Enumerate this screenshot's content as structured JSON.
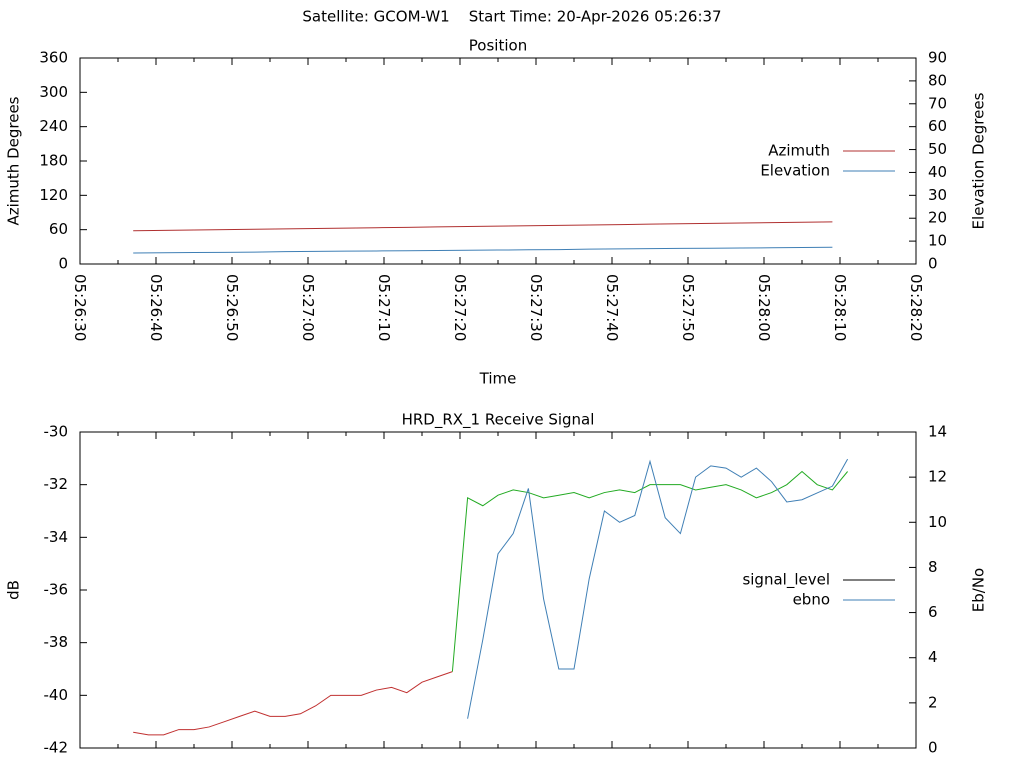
{
  "title": "Satellite: GCOM-W1    Start Time: 20-Apr-2026 05:26:37",
  "chart_data": [
    {
      "type": "line",
      "title": "Position",
      "xlabel": "Time",
      "ylabel": "Azimuth Degrees",
      "y2label": "Elevation Degrees",
      "x": [
        "05:26:37",
        "05:26:41",
        "05:26:45",
        "05:26:49",
        "05:26:53",
        "05:26:57",
        "05:27:01",
        "05:27:05",
        "05:27:09",
        "05:27:13",
        "05:27:17",
        "05:27:21",
        "05:27:25",
        "05:27:29",
        "05:27:33",
        "05:27:37",
        "05:27:41",
        "05:27:45",
        "05:27:49",
        "05:27:53",
        "05:27:57",
        "05:28:01",
        "05:28:05",
        "05:28:09"
      ],
      "xlim": [
        "05:26:30",
        "05:28:20"
      ],
      "xticks": [
        "05:26:30",
        "05:26:40",
        "05:26:50",
        "05:27:00",
        "05:27:10",
        "05:27:20",
        "05:27:30",
        "05:27:40",
        "05:27:50",
        "05:28:00",
        "05:28:10",
        "05:28:20"
      ],
      "ylim": [
        0,
        360
      ],
      "yticks": [
        0,
        60,
        120,
        180,
        240,
        300,
        360
      ],
      "y2lim": [
        0,
        90
      ],
      "y2ticks": [
        0,
        10,
        20,
        30,
        40,
        50,
        60,
        70,
        80,
        90
      ],
      "legend": "center right",
      "series": [
        {
          "name": "Azimuth",
          "color": "#b03030",
          "values": [
            58,
            58.7,
            59.4,
            60,
            60.7,
            61.4,
            62.1,
            62.8,
            63.4,
            64.1,
            64.8,
            65.5,
            66.2,
            66.9,
            67.5,
            68.2,
            68.9,
            69.6,
            70.3,
            71,
            71.6,
            72.3,
            73,
            73.7
          ]
        },
        {
          "name": "Elevation",
          "color": "#3f7fb5",
          "axis": "y2",
          "values": [
            4.8,
            4.9,
            5,
            5.1,
            5.2,
            5.4,
            5.5,
            5.6,
            5.7,
            5.8,
            5.9,
            6,
            6.1,
            6.2,
            6.3,
            6.5,
            6.6,
            6.7,
            6.8,
            6.9,
            7,
            7.1,
            7.2,
            7.3
          ]
        }
      ]
    },
    {
      "type": "line",
      "title": "HRD_RX_1 Receive Signal",
      "ylabel": "dB",
      "y2label": "Eb/No",
      "x": [
        "05:26:37",
        "05:26:39",
        "05:26:41",
        "05:26:43",
        "05:26:45",
        "05:26:47",
        "05:26:49",
        "05:26:51",
        "05:26:53",
        "05:26:55",
        "05:26:57",
        "05:26:59",
        "05:27:01",
        "05:27:03",
        "05:27:05",
        "05:27:07",
        "05:27:09",
        "05:27:11",
        "05:27:13",
        "05:27:15",
        "05:27:17",
        "05:27:19",
        "05:27:21",
        "05:27:23",
        "05:27:25",
        "05:27:27",
        "05:27:29",
        "05:27:31",
        "05:27:33",
        "05:27:35",
        "05:27:37",
        "05:27:39",
        "05:27:41",
        "05:27:43",
        "05:27:45",
        "05:27:47",
        "05:27:49",
        "05:27:51",
        "05:27:53",
        "05:27:55",
        "05:27:57",
        "05:27:59",
        "05:28:01",
        "05:28:03",
        "05:28:05",
        "05:28:07",
        "05:28:09",
        "05:28:11"
      ],
      "xlim": [
        "05:26:30",
        "05:28:20"
      ],
      "xticks": [
        "05:26:30",
        "05:26:40",
        "05:26:50",
        "05:27:00",
        "05:27:10",
        "05:27:20",
        "05:27:30",
        "05:27:40",
        "05:27:50",
        "05:28:00",
        "05:28:10",
        "05:28:20"
      ],
      "xtick_labels": false,
      "ylim": [
        -42,
        -30
      ],
      "yticks": [
        -42,
        -40,
        -38,
        -36,
        -34,
        -32,
        -30
      ],
      "y2lim": [
        0,
        14
      ],
      "y2ticks": [
        0,
        2,
        4,
        6,
        8,
        10,
        12,
        14
      ],
      "legend": "center right",
      "series": [
        {
          "name": "signal_level",
          "color": "#000000",
          "line_color_low": "#c03030",
          "line_color_high": "#22aa22",
          "values": [
            -41.4,
            -41.5,
            -41.5,
            -41.3,
            -41.3,
            -41.2,
            -41.0,
            -40.8,
            -40.6,
            -40.8,
            -40.8,
            -40.7,
            -40.4,
            -40.0,
            -40.0,
            -40.0,
            -39.8,
            -39.7,
            -39.9,
            -39.5,
            -39.3,
            -39.1,
            -32.5,
            -32.8,
            -32.4,
            -32.2,
            -32.3,
            -32.5,
            -32.4,
            -32.3,
            -32.5,
            -32.3,
            -32.2,
            -32.3,
            -32.0,
            -32.0,
            -32.0,
            -32.2,
            -32.1,
            -32.0,
            -32.2,
            -32.5,
            -32.3,
            -32.0,
            -31.5,
            -32.0,
            -32.2,
            -31.5
          ]
        },
        {
          "name": "ebno",
          "color": "#3f7fb5",
          "axis": "y2",
          "values": [
            null,
            null,
            null,
            null,
            null,
            null,
            null,
            null,
            null,
            null,
            null,
            null,
            null,
            null,
            null,
            null,
            null,
            null,
            null,
            null,
            null,
            null,
            1.3,
            4.8,
            8.6,
            9.5,
            11.5,
            6.6,
            3.5,
            3.5,
            7.5,
            10.5,
            10.0,
            10.3,
            12.7,
            10.2,
            9.5,
            12.0,
            12.5,
            12.4,
            12.0,
            12.4,
            11.8,
            10.9,
            11.0,
            11.3,
            11.6,
            12.8
          ]
        }
      ]
    }
  ]
}
